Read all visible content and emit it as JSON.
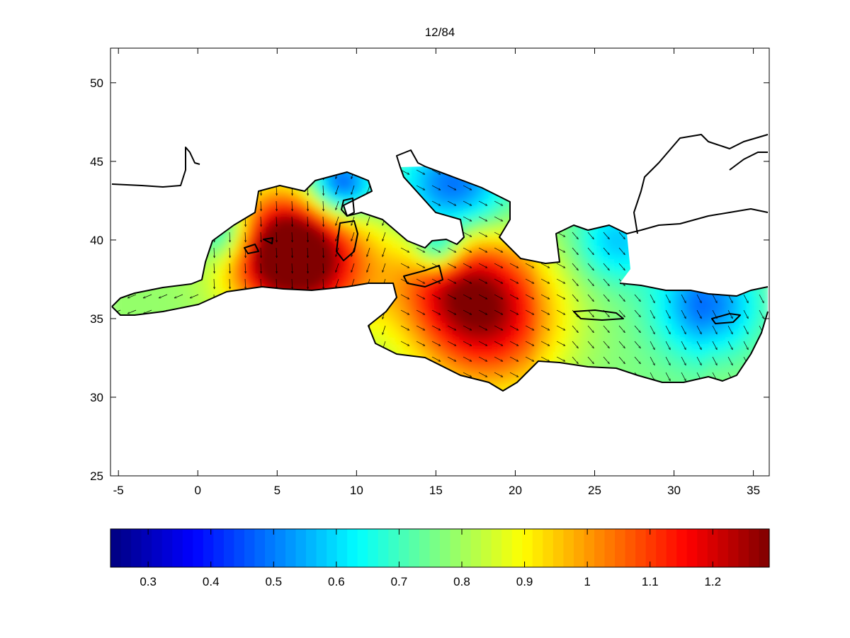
{
  "figure": {
    "title": "12/84"
  },
  "map": {
    "type": "heatmap",
    "region": "Mediterranean Sea",
    "x_range": [
      -5.5,
      36
    ],
    "y_range": [
      25,
      52.2
    ],
    "x_ticks": [
      "-5",
      "0",
      "5",
      "10",
      "15",
      "20",
      "25",
      "30",
      "35"
    ],
    "y_ticks": [
      "25",
      "30",
      "35",
      "40",
      "45",
      "50"
    ],
    "overlay": "vector arrows",
    "colormap": "jet"
  },
  "colorbar": {
    "range": [
      0.24,
      1.29
    ],
    "ticks": [
      "0.3",
      "0.4",
      "0.5",
      "0.6",
      "0.7",
      "0.8",
      "0.9",
      "1",
      "1.1",
      "1.2"
    ]
  }
}
